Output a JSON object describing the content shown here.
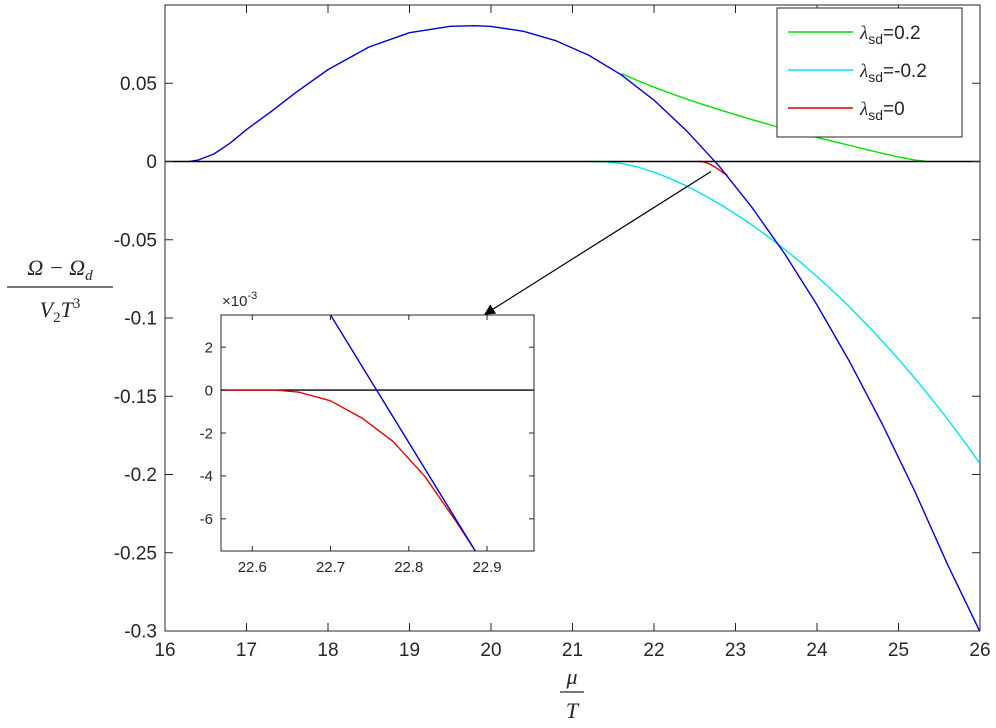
{
  "chart_data": [
    {
      "id": "main",
      "type": "line",
      "title": "",
      "xlabel": {
        "num": "μ",
        "den": "T"
      },
      "ylabel": {
        "num": "Ω − Ω",
        "num_sub": "d",
        "den": "V",
        "den_sub": "2",
        "den_tail": "T",
        "den_sup": "3"
      },
      "xlim": [
        16,
        26
      ],
      "ylim": [
        -0.3,
        0.1
      ],
      "xticks": [
        16,
        17,
        18,
        19,
        20,
        21,
        22,
        23,
        24,
        25,
        26
      ],
      "xtick_labels": [
        "16",
        "17",
        "18",
        "19",
        "20",
        "21",
        "22",
        "23",
        "24",
        "25",
        "26"
      ],
      "yticks": [
        0.05,
        0,
        -0.05,
        -0.1,
        -0.15,
        -0.2,
        -0.25,
        -0.3
      ],
      "ytick_labels": [
        "0.05",
        "0",
        "-0.05",
        "-0.1",
        "-0.15",
        "-0.2",
        "-0.25",
        "-0.3"
      ],
      "grid": false,
      "legend_position": "top-right",
      "series": [
        {
          "name": "λsd=0.2",
          "legend": {
            "symbol": "λ",
            "sub": "sd",
            "value": "=0.2"
          },
          "color": "#00e000",
          "x": [
            21.6,
            21.8,
            22.0,
            22.2,
            22.4,
            22.6,
            22.8,
            23.0,
            23.2,
            23.4,
            23.6,
            23.8,
            24.0,
            24.2,
            24.4,
            24.6,
            24.8,
            25.0,
            25.2,
            25.35
          ],
          "y": [
            0.0561,
            0.0517,
            0.0475,
            0.0436,
            0.0399,
            0.0364,
            0.0331,
            0.0299,
            0.0268,
            0.0238,
            0.0209,
            0.0181,
            0.0154,
            0.0128,
            0.0103,
            0.0077,
            0.0052,
            0.0029,
            0.0009,
            0.0
          ]
        },
        {
          "name": "λsd=-0.2",
          "legend": {
            "symbol": "λ",
            "sub": "sd",
            "value": "=-0.2"
          },
          "color": "#00e5e5",
          "x": [
            21.2,
            21.4,
            21.6,
            21.8,
            22.0,
            22.2,
            22.4,
            22.6,
            22.8,
            23.0,
            23.2,
            23.4,
            23.6,
            23.8,
            24.0,
            24.2,
            24.4,
            24.6,
            24.8,
            25.0,
            25.2,
            25.4,
            25.6,
            25.8,
            26.0
          ],
          "y": [
            0.0,
            -0.0002,
            -0.0012,
            -0.0035,
            -0.0068,
            -0.0109,
            -0.0157,
            -0.0211,
            -0.027,
            -0.0335,
            -0.0405,
            -0.048,
            -0.056,
            -0.0645,
            -0.0735,
            -0.083,
            -0.093,
            -0.1036,
            -0.1147,
            -0.1263,
            -0.1385,
            -0.1512,
            -0.1645,
            -0.1784,
            -0.193
          ]
        },
        {
          "name": "λsd=0",
          "legend": {
            "symbol": "λ",
            "sub": "sd",
            "value": "=0"
          },
          "color": "#e00000",
          "x": [
            22.55,
            22.6,
            22.65,
            22.7,
            22.75,
            22.8,
            22.85,
            22.9
          ],
          "y": [
            0.0,
            -0.0002,
            -0.0009,
            -0.0021,
            -0.0036,
            -0.0054,
            -0.0072,
            -0.0088
          ]
        },
        {
          "name": "",
          "color": "#0000d0",
          "x": [
            16.3,
            16.4,
            16.6,
            16.8,
            17.0,
            17.3,
            17.6,
            18.0,
            18.5,
            19.0,
            19.5,
            19.8,
            20.0,
            20.4,
            20.8,
            21.2,
            21.6,
            22.0,
            22.4,
            22.8,
            23.2,
            23.6,
            24.0,
            24.4,
            24.8,
            25.2,
            25.6,
            26.0
          ],
          "y": [
            0.0,
            0.0008,
            0.0048,
            0.0118,
            0.0204,
            0.0318,
            0.0439,
            0.0587,
            0.0731,
            0.0823,
            0.0864,
            0.0868,
            0.0863,
            0.0832,
            0.0771,
            0.0679,
            0.0553,
            0.0392,
            0.0196,
            -0.003,
            -0.0292,
            -0.0587,
            -0.0916,
            -0.1279,
            -0.1677,
            -0.2107,
            -0.2573,
            -0.3005
          ]
        },
        {
          "name": "",
          "color": "#000000",
          "x": [
            16,
            26
          ],
          "y": [
            0,
            0
          ]
        }
      ],
      "annotations": [
        {
          "type": "arrow",
          "from": [
            22.7,
            0.0
          ],
          "to": [
            20.0,
            -0.095
          ],
          "color": "#000000"
        }
      ]
    },
    {
      "id": "inset",
      "type": "line",
      "title": "",
      "xlim": [
        22.56,
        22.96
      ],
      "ylim": [
        -0.0075,
        0.0035
      ],
      "xticks": [
        22.6,
        22.7,
        22.8,
        22.9
      ],
      "xtick_labels": [
        "22.6",
        "22.7",
        "22.8",
        "22.9"
      ],
      "yticks": [
        0.002,
        0,
        -0.002,
        -0.004,
        -0.006
      ],
      "ytick_labels": [
        "2",
        "0",
        "-2",
        "-4",
        "-6"
      ],
      "y_multiplier": {
        "base": "×10",
        "exp": "-3"
      },
      "grid": false,
      "series": [
        {
          "name": "",
          "color": "#000000",
          "x": [
            22.56,
            22.96
          ],
          "y": [
            0,
            0
          ]
        },
        {
          "name": "",
          "color": "#e00000",
          "x": [
            22.56,
            22.6,
            22.63,
            22.66,
            22.7,
            22.74,
            22.78,
            22.82,
            22.86,
            22.885
          ],
          "y": [
            0.0,
            0.0,
            0.0,
            -0.0001,
            -0.0005,
            -0.0013,
            -0.0024,
            -0.004,
            -0.0061,
            -0.0075
          ]
        },
        {
          "name": "",
          "color": "#0000d0",
          "x": [
            22.7,
            22.885
          ],
          "y": [
            0.0035,
            -0.0075
          ]
        }
      ]
    }
  ]
}
